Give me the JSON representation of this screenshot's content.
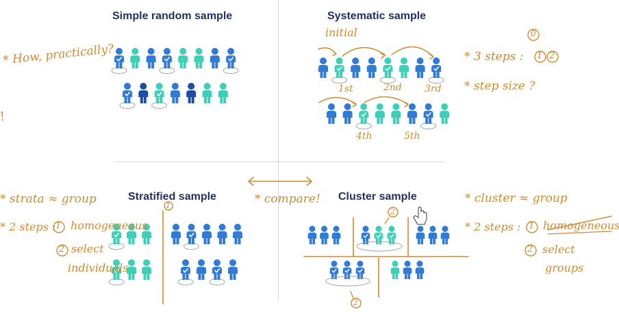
{
  "titles": {
    "simple": "Simple random sample",
    "systematic": "Systematic sample",
    "stratified": "Stratified sample",
    "cluster": "Cluster sample"
  },
  "annotations": {
    "how_practically": "* How, practically?",
    "exclaim": "!",
    "initial": "initial",
    "ord_1st": "1st",
    "ord_2nd": "2nd",
    "ord_3rd": "3rd",
    "ord_4th": "4th",
    "ord_5th": "5th",
    "three_steps": "* 3 steps :",
    "step_0": "0",
    "step_1": "1",
    "step_2": "2",
    "step_size": "* step size ?",
    "strata_group": "* strata ≈ group",
    "two_steps_left": "* 2 steps :",
    "left_step1_num": "1",
    "homogeneous_left": "homogeneous",
    "left_step2_num": "2",
    "select_left": "select",
    "individuals": "individuals",
    "strat_marker": "1",
    "compare": "* compare!",
    "cluster_group": "* cluster ≈ group",
    "two_steps_right": "* 2 steps :",
    "right_step1_num": "1",
    "homogeneous_right": "homogeneous",
    "right_step2_num": "2",
    "select_right": "select",
    "groups": "groups",
    "cluster_marker_top": "2",
    "cluster_marker_bottom": "2"
  },
  "colors": {
    "title": "#24305e",
    "blue_person": "#2f7bd6",
    "navy_person": "#1d4ea6",
    "teal_person": "#3dcfb8",
    "annotation": "#cf8a2e",
    "divider": "#d6d6d6"
  },
  "icons": {
    "person": "person-icon",
    "check": "check-icon",
    "cursor": "hand-cursor-icon"
  }
}
